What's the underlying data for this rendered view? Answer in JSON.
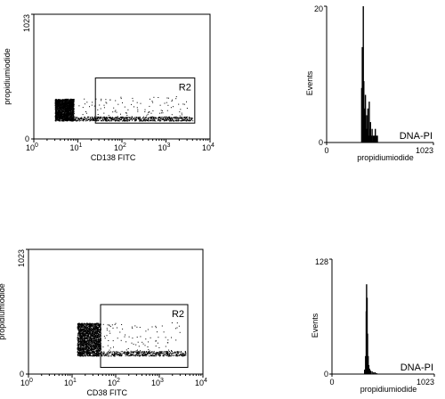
{
  "chart_data": [
    {
      "type": "scatter",
      "xlabel": "CD138 FITC",
      "ylabel": "propidiumiodide",
      "x_scale": "log",
      "xlim": [
        1,
        10000
      ],
      "ylim": [
        0,
        1023
      ],
      "x_ticks": [
        {
          "base": "10",
          "exp": "0"
        },
        {
          "base": "10",
          "exp": "1"
        },
        {
          "base": "10",
          "exp": "2"
        },
        {
          "base": "10",
          "exp": "3"
        },
        {
          "base": "10",
          "exp": "4"
        }
      ],
      "y_ticks": [
        "0",
        "1023"
      ],
      "gate": {
        "label": "R2",
        "x": [
          25,
          4500
        ],
        "y": [
          130,
          500
        ]
      },
      "clusters": [
        {
          "x": [
            3,
            8
          ],
          "y": [
            150,
            330
          ],
          "weight": 2000
        },
        {
          "x": [
            8,
            4000
          ],
          "y": [
            150,
            185
          ],
          "weight": 700
        },
        {
          "x": [
            10,
            3000
          ],
          "y": [
            185,
            350
          ],
          "weight": 100
        }
      ]
    },
    {
      "type": "bar",
      "xlabel": "propidiumiodide",
      "ylabel": "Events",
      "xlim": [
        0,
        1023
      ],
      "ylim": [
        0,
        20
      ],
      "x_ticks": [
        "0",
        "1023"
      ],
      "y_ticks": [
        "0",
        "20"
      ],
      "annotation": "DNA-PI",
      "bins": [
        {
          "x": 330,
          "y": 8
        },
        {
          "x": 336,
          "y": 14
        },
        {
          "x": 340,
          "y": 6
        },
        {
          "x": 345,
          "y": 20
        },
        {
          "x": 350,
          "y": 9
        },
        {
          "x": 355,
          "y": 5
        },
        {
          "x": 360,
          "y": 3
        },
        {
          "x": 366,
          "y": 7
        },
        {
          "x": 372,
          "y": 2
        },
        {
          "x": 378,
          "y": 4
        },
        {
          "x": 384,
          "y": 2
        },
        {
          "x": 390,
          "y": 5
        },
        {
          "x": 396,
          "y": 1
        },
        {
          "x": 402,
          "y": 6
        },
        {
          "x": 408,
          "y": 2
        },
        {
          "x": 414,
          "y": 3
        },
        {
          "x": 420,
          "y": 1
        },
        {
          "x": 430,
          "y": 2
        },
        {
          "x": 440,
          "y": 1
        },
        {
          "x": 450,
          "y": 1
        },
        {
          "x": 460,
          "y": 2
        },
        {
          "x": 470,
          "y": 1
        },
        {
          "x": 480,
          "y": 1
        }
      ]
    },
    {
      "type": "scatter",
      "xlabel": "CD38 FITC",
      "ylabel": "propidiumiodide",
      "x_scale": "log",
      "xlim": [
        1,
        10000
      ],
      "ylim": [
        0,
        1023
      ],
      "x_ticks": [
        {
          "base": "10",
          "exp": "0"
        },
        {
          "base": "10",
          "exp": "1"
        },
        {
          "base": "10",
          "exp": "2"
        },
        {
          "base": "10",
          "exp": "3"
        },
        {
          "base": "10",
          "exp": "4"
        }
      ],
      "y_ticks": [
        "0",
        "1023"
      ],
      "gate": {
        "label": "R2",
        "x": [
          45,
          4500
        ],
        "y": [
          55,
          570
        ]
      },
      "clusters": [
        {
          "x": [
            13,
            45
          ],
          "y": [
            150,
            420
          ],
          "weight": 2000
        },
        {
          "x": [
            45,
            4000
          ],
          "y": [
            150,
            190
          ],
          "weight": 500
        },
        {
          "x": [
            50,
            3000
          ],
          "y": [
            190,
            430
          ],
          "weight": 90
        }
      ]
    },
    {
      "type": "bar",
      "xlabel": "propidiumiodide",
      "ylabel": "Events",
      "xlim": [
        0,
        1023
      ],
      "ylim": [
        0,
        128
      ],
      "x_ticks": [
        "0",
        "1023"
      ],
      "y_ticks": [
        "0",
        "128"
      ],
      "annotation": "DNA-PI",
      "bins": [
        {
          "x": 320,
          "y": 5
        },
        {
          "x": 330,
          "y": 20
        },
        {
          "x": 336,
          "y": 70
        },
        {
          "x": 340,
          "y": 100
        },
        {
          "x": 345,
          "y": 85
        },
        {
          "x": 350,
          "y": 45
        },
        {
          "x": 356,
          "y": 20
        },
        {
          "x": 362,
          "y": 10
        },
        {
          "x": 370,
          "y": 6
        },
        {
          "x": 380,
          "y": 4
        },
        {
          "x": 395,
          "y": 3
        },
        {
          "x": 410,
          "y": 2
        },
        {
          "x": 425,
          "y": 2
        },
        {
          "x": 440,
          "y": 1
        }
      ]
    }
  ]
}
